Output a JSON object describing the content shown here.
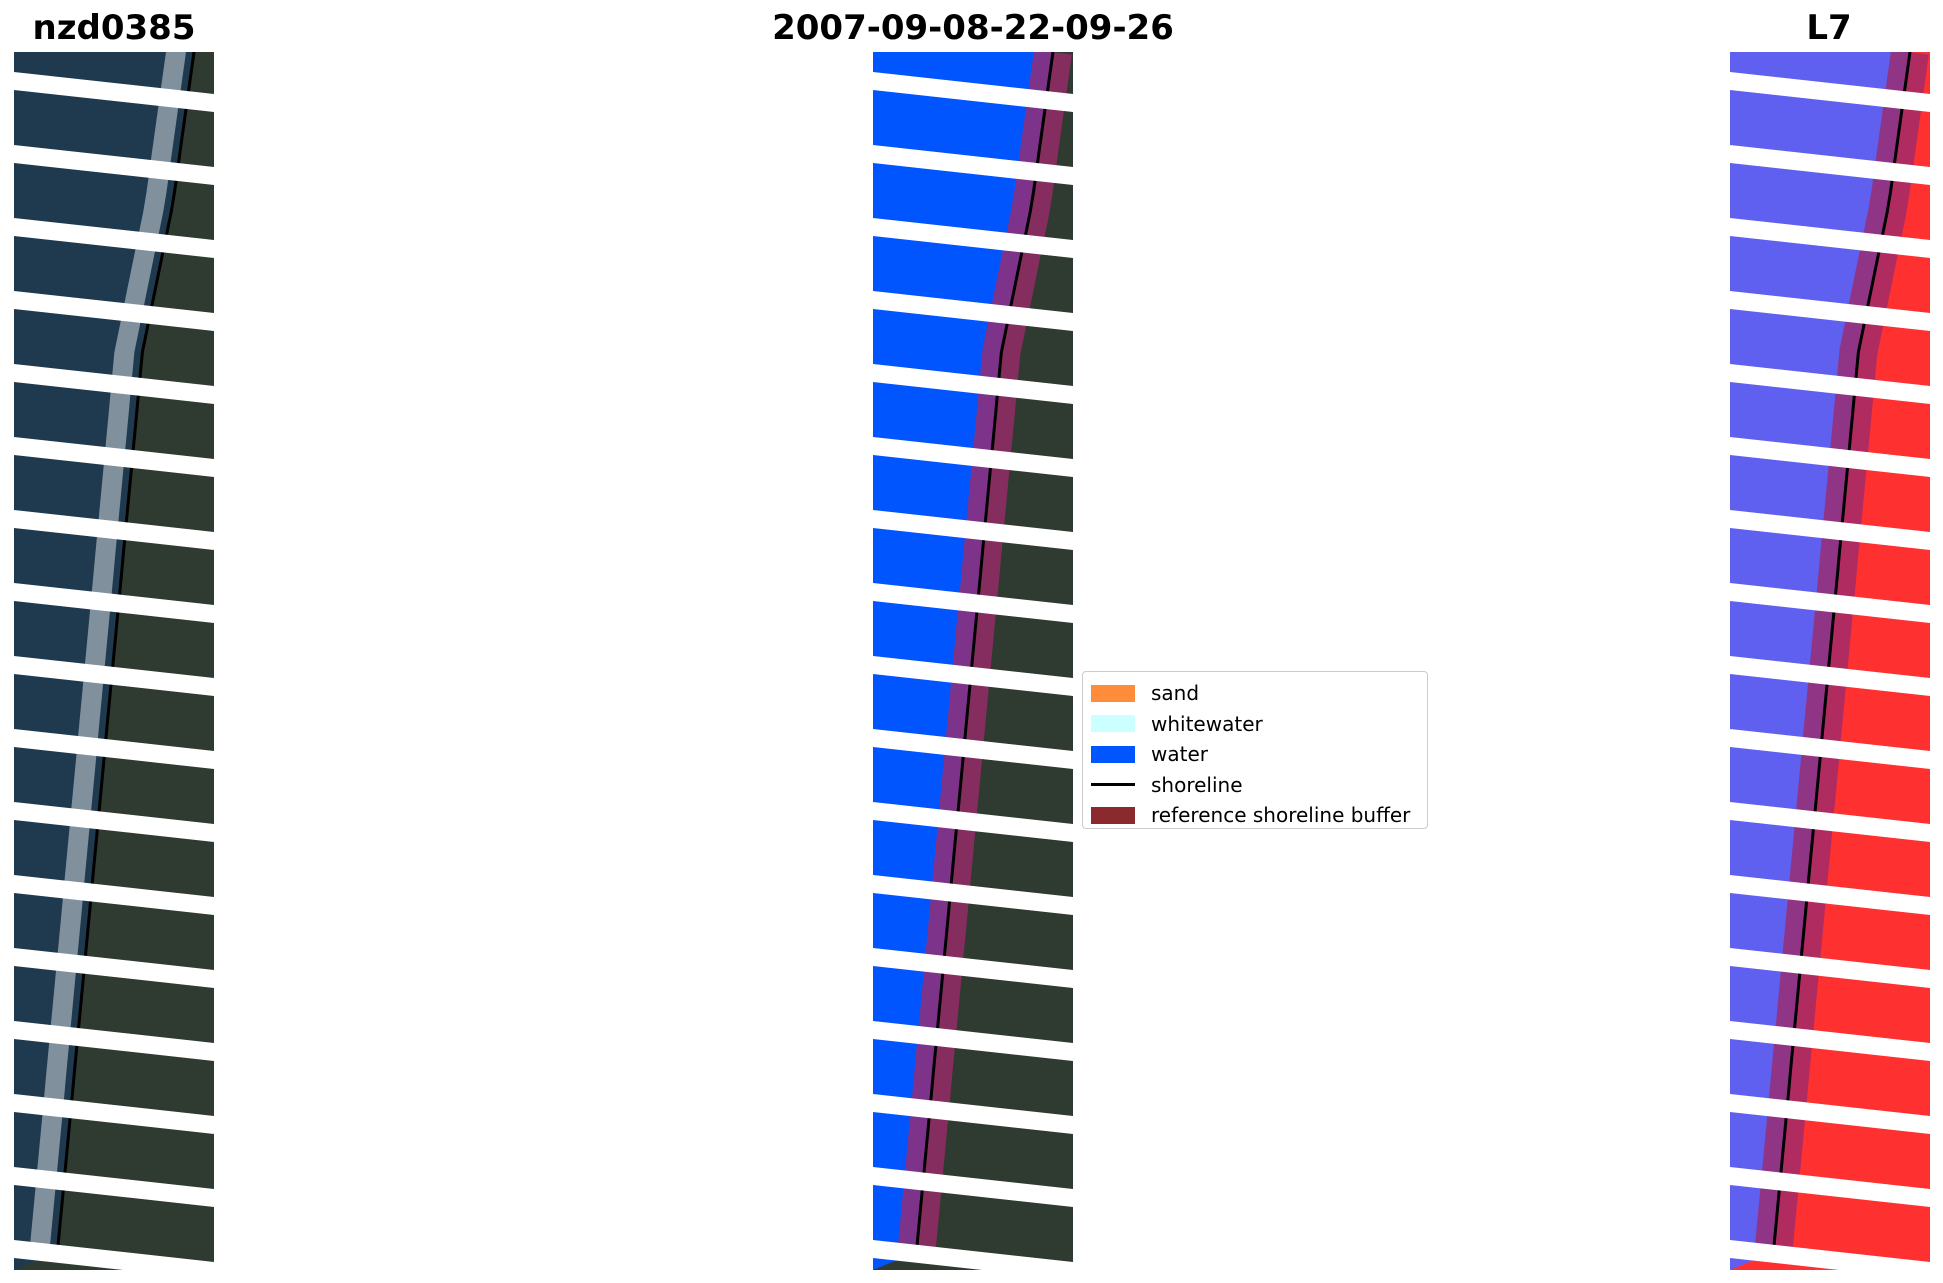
{
  "titles": {
    "left": "nzd0385",
    "center": "2007-09-08-22-09-26",
    "right": "L7"
  },
  "legend": {
    "items": [
      {
        "label": "sand",
        "color": "#ff8c3a",
        "type": "patch"
      },
      {
        "label": "whitewater",
        "color": "#ccffff",
        "type": "patch"
      },
      {
        "label": "water",
        "color": "#0055ff",
        "type": "patch"
      },
      {
        "label": "shoreline",
        "color": "#000000",
        "type": "line"
      },
      {
        "label": "reference shoreline buffer",
        "color": "#8b2a2e",
        "type": "patch"
      }
    ]
  },
  "colors": {
    "ocean": "#1f3a4f",
    "land": "#2f3a30",
    "surf": "#cfd8df",
    "water_class": "#0055ff",
    "water_index_water": "#5f5ff0",
    "water_index_land": "#ff3030",
    "buffer": "#9c2a6c",
    "stripe": "#ffffff"
  },
  "panels": [
    {
      "name": "rgb-image-panel",
      "variant": "rgb"
    },
    {
      "name": "classified-image-panel",
      "variant": "classified"
    },
    {
      "name": "water-index-panel",
      "variant": "mndwi"
    }
  ]
}
